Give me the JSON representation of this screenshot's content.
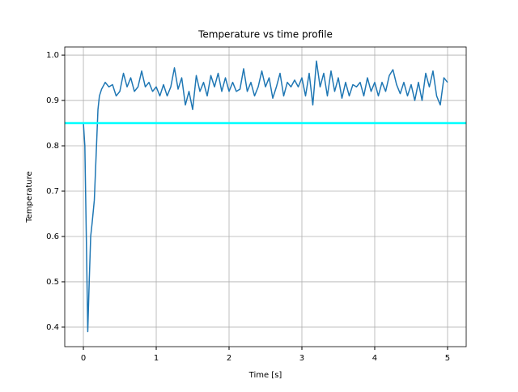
{
  "chart_data": {
    "type": "line",
    "title": "Temperature vs time profile",
    "x_label": "Time [s]",
    "y_label": "Temperature",
    "x": [
      0,
      0.02,
      0.04,
      0.06,
      0.08,
      0.1,
      0.12,
      0.15,
      0.18,
      0.2,
      0.22,
      0.25,
      0.3,
      0.35,
      0.4,
      0.45,
      0.5,
      0.55,
      0.6,
      0.65,
      0.7,
      0.75,
      0.8,
      0.85,
      0.9,
      0.95,
      1.0,
      1.05,
      1.1,
      1.15,
      1.2,
      1.25,
      1.3,
      1.35,
      1.4,
      1.45,
      1.5,
      1.55,
      1.6,
      1.65,
      1.7,
      1.75,
      1.8,
      1.85,
      1.9,
      1.95,
      2.0,
      2.05,
      2.1,
      2.15,
      2.2,
      2.25,
      2.3,
      2.35,
      2.4,
      2.45,
      2.5,
      2.55,
      2.6,
      2.65,
      2.7,
      2.75,
      2.8,
      2.85,
      2.9,
      2.95,
      3.0,
      3.05,
      3.1,
      3.15,
      3.2,
      3.25,
      3.3,
      3.35,
      3.4,
      3.45,
      3.5,
      3.55,
      3.6,
      3.65,
      3.7,
      3.75,
      3.8,
      3.85,
      3.9,
      3.95,
      4.0,
      4.05,
      4.1,
      4.15,
      4.2,
      4.25,
      4.3,
      4.35,
      4.4,
      4.45,
      4.5,
      4.55,
      4.6,
      4.65,
      4.7,
      4.75,
      4.8,
      4.85,
      4.9,
      4.95,
      5.0
    ],
    "series": [
      {
        "color": "#1f77b4",
        "values": [
          0.85,
          0.8,
          0.6,
          0.39,
          0.5,
          0.6,
          0.63,
          0.68,
          0.8,
          0.88,
          0.91,
          0.925,
          0.94,
          0.93,
          0.935,
          0.91,
          0.92,
          0.96,
          0.93,
          0.95,
          0.92,
          0.93,
          0.965,
          0.93,
          0.94,
          0.92,
          0.93,
          0.91,
          0.935,
          0.91,
          0.93,
          0.972,
          0.925,
          0.95,
          0.89,
          0.92,
          0.88,
          0.955,
          0.92,
          0.94,
          0.91,
          0.955,
          0.93,
          0.96,
          0.92,
          0.95,
          0.92,
          0.94,
          0.92,
          0.925,
          0.97,
          0.92,
          0.94,
          0.91,
          0.93,
          0.965,
          0.93,
          0.95,
          0.905,
          0.93,
          0.96,
          0.91,
          0.94,
          0.93,
          0.945,
          0.93,
          0.95,
          0.91,
          0.96,
          0.89,
          0.987,
          0.93,
          0.96,
          0.91,
          0.965,
          0.92,
          0.95,
          0.905,
          0.94,
          0.91,
          0.935,
          0.93,
          0.94,
          0.91,
          0.95,
          0.92,
          0.94,
          0.91,
          0.94,
          0.92,
          0.955,
          0.968,
          0.935,
          0.915,
          0.94,
          0.91,
          0.935,
          0.9,
          0.94,
          0.9,
          0.96,
          0.93,
          0.965,
          0.91,
          0.89,
          0.95,
          0.94
        ]
      }
    ],
    "reference_line": {
      "value": 0.85,
      "color": "#00ffff"
    },
    "xlim": [
      -0.256,
      5.256
    ],
    "ylim": [
      0.357,
      1.018
    ],
    "xticks": [
      0,
      1,
      2,
      3,
      4,
      5
    ],
    "yticks": [
      0.4,
      0.5,
      0.6,
      0.7,
      0.8,
      0.9,
      {
        "value": 1,
        "label": "1.0"
      }
    ],
    "grid": true
  }
}
